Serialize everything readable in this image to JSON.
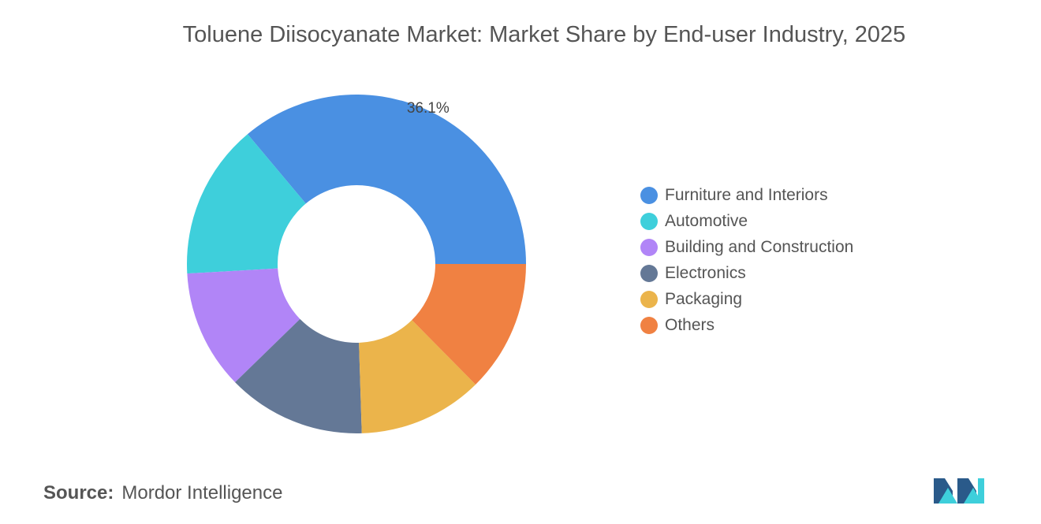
{
  "title": "Toluene Diisocyanate Market: Market Share by End-user Industry, 2025",
  "source_label": "Source:",
  "source_value": "Mordor Intelligence",
  "chart_data": {
    "type": "pie",
    "variant": "donut",
    "title": "Toluene Diisocyanate Market: Market Share by End-user Industry, 2025",
    "unit": "%",
    "legend_position": "right",
    "categories": [
      "Furniture and Interiors",
      "Automotive",
      "Building and Construction",
      "Electronics",
      "Packaging",
      "Others"
    ],
    "values": [
      36.1,
      14.8,
      11.4,
      13.2,
      11.9,
      12.6
    ],
    "colors": [
      "#4A90E2",
      "#3ECFDB",
      "#B185F7",
      "#647896",
      "#EBB44B",
      "#F08142"
    ],
    "data_labels": [
      {
        "category": "Furniture and Interiors",
        "text": "36.1%"
      }
    ]
  }
}
